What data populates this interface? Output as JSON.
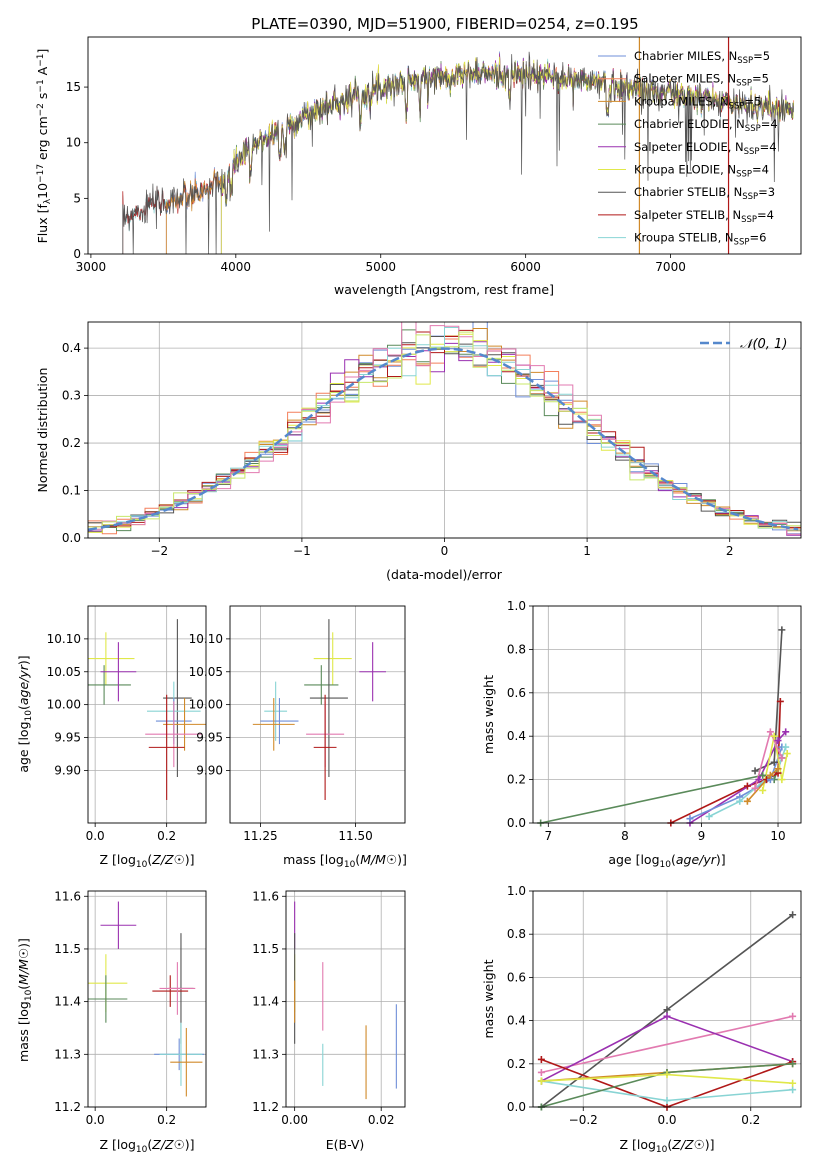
{
  "title": "PLATE=0390, MJD=51900, FIBERID=0254, z=0.195",
  "colors": {
    "Chabrier MILES": "#6f8fd8",
    "Salpeter MILES": "#f47f5b",
    "Kroupa MILES": "#d08a2a",
    "Chabrier ELODIE": "#5a8a5a",
    "Salpeter ELODIE": "#9a30b0",
    "Kroupa ELODIE": "#e0e84a",
    "Chabrier STELIB": "#555555",
    "Salpeter STELIB": "#b01818",
    "Kroupa STELIB": "#88d4d4",
    "extra_pink": "#e27ab0",
    "extra_lime": "#c8e86a",
    "normal": "#5588cc"
  },
  "legend_spectrum": [
    {
      "name": "Chabrier MILES",
      "main": "Chabrier MILES, N",
      "sub": "SSP",
      "tail": "=5"
    },
    {
      "name": "Salpeter MILES",
      "main": "Salpeter MILES, N",
      "sub": "SSP",
      "tail": "=5"
    },
    {
      "name": "Kroupa MILES",
      "main": "Kroupa MILES, N",
      "sub": "SSP",
      "tail": "=5"
    },
    {
      "name": "Chabrier ELODIE",
      "main": "Chabrier ELODIE, N",
      "sub": "SSP",
      "tail": "=4"
    },
    {
      "name": "Salpeter ELODIE",
      "main": "Salpeter ELODIE, N",
      "sub": "SSP",
      "tail": "=4"
    },
    {
      "name": "Kroupa ELODIE",
      "main": "Kroupa ELODIE, N",
      "sub": "SSP",
      "tail": "=4"
    },
    {
      "name": "Chabrier STELIB",
      "main": "Chabrier STELIB, N",
      "sub": "SSP",
      "tail": "=3"
    },
    {
      "name": "Salpeter STELIB",
      "main": "Salpeter STELIB, N",
      "sub": "SSP",
      "tail": "=4"
    },
    {
      "name": "Kroupa STELIB",
      "main": "Kroupa STELIB, N",
      "sub": "SSP",
      "tail": "=6"
    }
  ],
  "chart_data": [
    {
      "id": "spectrum",
      "type": "line",
      "xlabel": "wavelength [Angstrom, rest frame]",
      "ylabel": "Flux [f_λ 10^-17 erg cm^-2 s^-1 A^-1]",
      "xlim": [
        2980,
        7900
      ],
      "ylim": [
        0,
        19.5
      ],
      "xticks": [
        3000,
        4000,
        5000,
        6000,
        7000
      ],
      "yticks": [
        0,
        5,
        10,
        15
      ],
      "grid": false,
      "start_wavelength": {
        "Chabrier MILES": 3520,
        "Salpeter MILES": 3520,
        "Kroupa MILES": 3520,
        "Chabrier ELODIE": 3900,
        "Salpeter ELODIE": 3900,
        "Kroupa ELODIE": 3900,
        "Chabrier STELIB": 3220,
        "Salpeter STELIB": 3220,
        "Kroupa STELIB": 3220
      },
      "continuum": {
        "x": [
          3220,
          3400,
          3700,
          3900,
          4000,
          4200,
          4500,
          4800,
          5000,
          5300,
          5600,
          5900,
          6200,
          6500,
          6800,
          7100,
          7400,
          7850
        ],
        "y": [
          3.2,
          4.3,
          5.2,
          6.5,
          8.2,
          10.5,
          12.5,
          14.2,
          15.0,
          15.8,
          16.2,
          16.2,
          15.9,
          15.4,
          14.8,
          14.2,
          13.6,
          13.0
        ]
      }
    },
    {
      "id": "residuals",
      "type": "line",
      "xlabel": "(data-model)/error",
      "ylabel": "Normed distribution",
      "xlim": [
        -2.5,
        2.5
      ],
      "ylim": [
        0,
        0.455
      ],
      "xticks": [
        -2,
        -1,
        0,
        1,
        2
      ],
      "yticks": [
        0.0,
        0.1,
        0.2,
        0.3,
        0.4
      ],
      "grid": true,
      "legend_label": "𝒩(0, 1)",
      "legend_position": "top-right"
    },
    {
      "id": "age_vs_Z",
      "type": "scatter",
      "xlabel": "Z [log10(Z/Z☉)]",
      "ylabel": "age  [log10(age/yr)]",
      "xlim": [
        -0.02,
        0.31
      ],
      "ylim": [
        9.82,
        10.15
      ],
      "xticks": [
        0.0,
        0.2
      ],
      "yticks": [
        9.9,
        9.95,
        10.0,
        10.05,
        10.1
      ],
      "grid": true,
      "points": [
        {
          "c": "Kroupa ELODIE",
          "x": 0.03,
          "xerr": 0.08,
          "y": 10.07,
          "yerr": 0.04
        },
        {
          "c": "Chabrier ELODIE",
          "x": 0.025,
          "xerr": 0.075,
          "y": 10.03,
          "yerr": 0.03
        },
        {
          "c": "Salpeter ELODIE",
          "x": 0.065,
          "xerr": 0.05,
          "y": 10.05,
          "yerr": 0.045
        },
        {
          "c": "Chabrier STELIB",
          "x": 0.23,
          "xerr": 0.04,
          "y": 10.01,
          "yerr": 0.12
        },
        {
          "c": "Kroupa STELIB",
          "x": 0.22,
          "xerr": 0.075,
          "y": 9.99,
          "yerr": 0.045
        },
        {
          "c": "Chabrier MILES",
          "x": 0.22,
          "xerr": 0.05,
          "y": 9.975,
          "yerr": 0.035
        },
        {
          "c": "Kroupa MILES",
          "x": 0.25,
          "xerr": 0.06,
          "y": 9.97,
          "yerr": 0.04
        },
        {
          "c": "extra_pink",
          "x": 0.22,
          "xerr": 0.08,
          "y": 9.955,
          "yerr": 0.05
        },
        {
          "c": "Salpeter STELIB",
          "x": 0.2,
          "xerr": 0.05,
          "y": 9.935,
          "yerr": 0.08
        }
      ]
    },
    {
      "id": "age_vs_mass",
      "type": "scatter",
      "xlabel": "mass [log10(M/M☉)]",
      "ylabel": "",
      "xlim": [
        11.17,
        11.63
      ],
      "ylim": [
        9.82,
        10.15
      ],
      "xticks": [
        11.25,
        11.5
      ],
      "yticks": [
        9.9,
        9.95,
        10.0,
        10.05,
        10.1
      ],
      "grid": true,
      "points": [
        {
          "c": "Kroupa ELODIE",
          "x": 11.44,
          "xerr": 0.05,
          "y": 10.07,
          "yerr": 0.04
        },
        {
          "c": "Chabrier ELODIE",
          "x": 11.41,
          "xerr": 0.045,
          "y": 10.03,
          "yerr": 0.03
        },
        {
          "c": "Salpeter ELODIE",
          "x": 11.545,
          "xerr": 0.035,
          "y": 10.05,
          "yerr": 0.045
        },
        {
          "c": "Chabrier STELIB",
          "x": 11.43,
          "xerr": 0.05,
          "y": 10.01,
          "yerr": 0.12
        },
        {
          "c": "Kroupa STELIB",
          "x": 11.29,
          "xerr": 0.03,
          "y": 9.99,
          "yerr": 0.045
        },
        {
          "c": "Chabrier MILES",
          "x": 11.3,
          "xerr": 0.05,
          "y": 9.975,
          "yerr": 0.035
        },
        {
          "c": "Kroupa MILES",
          "x": 11.285,
          "xerr": 0.055,
          "y": 9.97,
          "yerr": 0.04
        },
        {
          "c": "extra_pink",
          "x": 11.42,
          "xerr": 0.05,
          "y": 9.955,
          "yerr": 0.05
        },
        {
          "c": "Salpeter STELIB",
          "x": 11.42,
          "xerr": 0.03,
          "y": 9.935,
          "yerr": 0.08
        }
      ]
    },
    {
      "id": "weights_vs_age",
      "type": "line",
      "xlabel": "age  [log10(age/yr)]",
      "ylabel": "mass weight",
      "xlim": [
        6.8,
        10.3
      ],
      "ylim": [
        0,
        1.0
      ],
      "xticks": [
        7,
        8,
        9,
        10
      ],
      "yticks": [
        0.0,
        0.2,
        0.4,
        0.6,
        0.8,
        1.0
      ],
      "grid": true,
      "series": [
        {
          "c": "Chabrier ELODIE",
          "x": [
            6.9,
            9.8,
            9.95,
            10.05
          ],
          "y": [
            0.0,
            0.22,
            0.2,
            0.3
          ]
        },
        {
          "c": "Salpeter STELIB",
          "x": [
            8.6,
            9.6,
            9.85,
            10.0,
            10.03
          ],
          "y": [
            0.0,
            0.17,
            0.2,
            0.23,
            0.56
          ]
        },
        {
          "c": "Chabrier STELIB",
          "x": [
            9.7,
            9.95,
            10.05
          ],
          "y": [
            0.24,
            0.28,
            0.89
          ]
        },
        {
          "c": "Salpeter ELODIE",
          "x": [
            8.85,
            9.75,
            10.0,
            10.1
          ],
          "y": [
            0.0,
            0.2,
            0.38,
            0.42
          ]
        },
        {
          "c": "Chabrier MILES",
          "x": [
            8.85,
            9.5,
            9.9,
            10.05
          ],
          "y": [
            0.02,
            0.12,
            0.2,
            0.35
          ]
        },
        {
          "c": "Kroupa STELIB",
          "x": [
            9.1,
            9.5,
            10.0,
            10.1
          ],
          "y": [
            0.03,
            0.1,
            0.25,
            0.35
          ]
        },
        {
          "c": "Kroupa ELODIE",
          "x": [
            9.8,
            9.95,
            10.05,
            10.12
          ],
          "y": [
            0.15,
            0.4,
            0.2,
            0.32
          ]
        },
        {
          "c": "extra_pink",
          "x": [
            9.7,
            9.9,
            10.05
          ],
          "y": [
            0.16,
            0.42,
            0.3
          ]
        },
        {
          "c": "Kroupa MILES",
          "x": [
            9.6,
            9.9,
            10.0
          ],
          "y": [
            0.1,
            0.22,
            0.25
          ]
        }
      ]
    },
    {
      "id": "mass_vs_Z",
      "type": "scatter",
      "xlabel": "Z [log10(Z/Z☉)]",
      "ylabel": "mass [log10(M/M☉)]",
      "xlim": [
        -0.02,
        0.31
      ],
      "ylim": [
        11.2,
        11.61
      ],
      "xticks": [
        0.0,
        0.2
      ],
      "yticks": [
        11.2,
        11.3,
        11.4,
        11.5,
        11.6
      ],
      "grid": true,
      "points": [
        {
          "c": "Salpeter ELODIE",
          "x": 0.065,
          "xerr": 0.05,
          "y": 11.545,
          "yerr": 0.045
        },
        {
          "c": "Kroupa ELODIE",
          "x": 0.03,
          "xerr": 0.06,
          "y": 11.435,
          "yerr": 0.055
        },
        {
          "c": "Chabrier ELODIE",
          "x": 0.03,
          "xerr": 0.06,
          "y": 11.405,
          "yerr": 0.045
        },
        {
          "c": "Chabrier STELIB",
          "x": 0.24,
          "xerr": 0.035,
          "y": 11.425,
          "yerr": 0.105
        },
        {
          "c": "Salpeter STELIB",
          "x": 0.21,
          "xerr": 0.05,
          "y": 11.42,
          "yerr": 0.03
        },
        {
          "c": "extra_pink",
          "x": 0.23,
          "xerr": 0.05,
          "y": 11.425,
          "yerr": 0.05
        },
        {
          "c": "Chabrier MILES",
          "x": 0.235,
          "xerr": 0.07,
          "y": 11.3,
          "yerr": 0.03
        },
        {
          "c": "Kroupa STELIB",
          "x": 0.24,
          "xerr": 0.06,
          "y": 11.3,
          "yerr": 0.06
        },
        {
          "c": "Kroupa MILES",
          "x": 0.255,
          "xerr": 0.045,
          "y": 11.285,
          "yerr": 0.065
        }
      ]
    },
    {
      "id": "mass_vs_EBV",
      "type": "scatter",
      "xlabel": "E(B-V)",
      "ylabel": "",
      "xlim": [
        -0.002,
        0.0255
      ],
      "ylim": [
        11.2,
        11.61
      ],
      "xticks": [
        0.0,
        0.02
      ],
      "yticks": [
        11.2,
        11.3,
        11.4,
        11.5,
        11.6
      ],
      "grid": true,
      "points": [
        {
          "c": "Salpeter ELODIE",
          "x": 0.0,
          "y": 11.545,
          "yerr": 0.045
        },
        {
          "c": "Kroupa ELODIE",
          "x": 0.0,
          "y": 11.435,
          "yerr": 0.055
        },
        {
          "c": "Chabrier STELIB",
          "x": 0.0,
          "y": 11.425,
          "yerr": 0.105
        },
        {
          "c": "Kroupa MILES",
          "x": 0.0,
          "y": 11.4,
          "yerr": 0.04
        },
        {
          "c": "extra_pink",
          "x": 0.0065,
          "y": 11.41,
          "yerr": 0.065
        },
        {
          "c": "Kroupa STELIB",
          "x": 0.0065,
          "y": 11.28,
          "yerr": 0.04
        },
        {
          "c": "Kroupa MILES",
          "x": 0.0165,
          "y": 11.285,
          "yerr": 0.07
        },
        {
          "c": "Chabrier MILES",
          "x": 0.0235,
          "y": 11.315,
          "yerr": 0.08
        }
      ]
    },
    {
      "id": "weights_vs_Z",
      "type": "line",
      "xlabel": "Z [log10(Z/Z☉)]",
      "ylabel": "mass weight",
      "xlim": [
        -0.32,
        0.32
      ],
      "ylim": [
        0,
        1.0
      ],
      "xticks": [
        -0.2,
        0.0,
        0.2
      ],
      "yticks": [
        0.0,
        0.2,
        0.4,
        0.6,
        0.8,
        1.0
      ],
      "grid": true,
      "series": [
        {
          "c": "Chabrier STELIB",
          "x": [
            -0.3,
            0.0,
            0.3
          ],
          "y": [
            0.0,
            0.45,
            0.89
          ]
        },
        {
          "c": "extra_pink",
          "x": [
            -0.3,
            0.3
          ],
          "y": [
            0.16,
            0.42
          ]
        },
        {
          "c": "Salpeter ELODIE",
          "x": [
            -0.3,
            0.0,
            0.3
          ],
          "y": [
            0.12,
            0.42,
            0.21
          ]
        },
        {
          "c": "Salpeter STELIB",
          "x": [
            -0.3,
            0.0,
            0.3
          ],
          "y": [
            0.22,
            0.0,
            0.21
          ]
        },
        {
          "c": "Kroupa STELIB",
          "x": [
            -0.3,
            0.0,
            0.3
          ],
          "y": [
            0.12,
            0.03,
            0.08
          ]
        },
        {
          "c": "Kroupa MILES",
          "x": [
            -0.3,
            0.0,
            0.3
          ],
          "y": [
            0.12,
            0.16,
            0.2
          ]
        },
        {
          "c": "Chabrier ELODIE",
          "x": [
            -0.3,
            0.0,
            0.3
          ],
          "y": [
            0.0,
            0.16,
            0.2
          ]
        },
        {
          "c": "Kroupa ELODIE",
          "x": [
            -0.3,
            0.0,
            0.3
          ],
          "y": [
            0.12,
            0.15,
            0.11
          ]
        }
      ]
    }
  ]
}
